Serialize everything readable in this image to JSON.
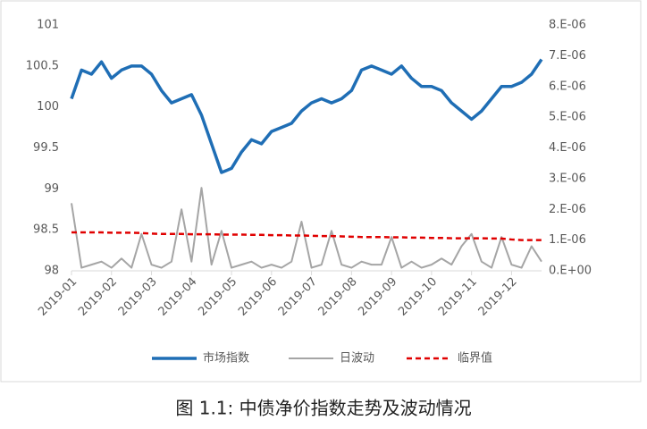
{
  "chart_data": {
    "type": "line",
    "caption": "图 1.1:  中债净价指数走势及波动情况",
    "categories": [
      "2019-01",
      null,
      null,
      null,
      "2019-02",
      null,
      null,
      null,
      "2019-03",
      null,
      null,
      null,
      "2019-04",
      null,
      null,
      null,
      "2019-05",
      null,
      null,
      null,
      "2019-06",
      null,
      null,
      null,
      "2019-07",
      null,
      null,
      null,
      "2019-08",
      null,
      null,
      null,
      "2019-09",
      null,
      null,
      null,
      "2019-10",
      null,
      null,
      null,
      "2019-11",
      null,
      null,
      null,
      "2019-12",
      null,
      null,
      null
    ],
    "series": [
      {
        "name": "市场指数",
        "color": "#1f6eb5",
        "axis": "y",
        "values": [
          100.1,
          100.45,
          100.4,
          100.55,
          100.35,
          100.45,
          100.5,
          100.5,
          100.4,
          100.2,
          100.05,
          100.1,
          100.15,
          99.9,
          99.55,
          99.2,
          99.25,
          99.45,
          99.6,
          99.55,
          99.7,
          99.75,
          99.8,
          99.95,
          100.05,
          100.1,
          100.05,
          100.1,
          100.2,
          100.45,
          100.5,
          100.45,
          100.4,
          100.5,
          100.35,
          100.25,
          100.25,
          100.2,
          100.05,
          99.95,
          99.85,
          99.95,
          100.1,
          100.25,
          100.25,
          100.3,
          100.4,
          100.58
        ]
      },
      {
        "name": "日波动",
        "color": "#a5a5a5",
        "axis": "y2",
        "values": [
          2.2e-06,
          1e-07,
          2e-07,
          3e-07,
          1e-07,
          4e-07,
          1e-07,
          1.2e-06,
          2e-07,
          1e-07,
          3e-07,
          2e-06,
          3e-07,
          2.7e-06,
          2e-07,
          1.3e-06,
          1e-07,
          2e-07,
          3e-07,
          1e-07,
          2e-07,
          1e-07,
          3e-07,
          1.6e-06,
          1e-07,
          2e-07,
          1.3e-06,
          2e-07,
          1e-07,
          3e-07,
          2e-07,
          2e-07,
          1.1e-06,
          1e-07,
          3e-07,
          1e-07,
          2e-07,
          4e-07,
          2e-07,
          8e-07,
          1.2e-06,
          3e-07,
          1e-07,
          1.1e-06,
          2e-07,
          1e-07,
          8e-07,
          3e-07
        ]
      },
      {
        "name": "临界值",
        "color": "#e00000",
        "axis": "y2",
        "dashed": true,
        "values": [
          1.25e-06,
          1.25e-06,
          1.25e-06,
          1.25e-06,
          1.24e-06,
          1.24e-06,
          1.24e-06,
          1.23e-06,
          1.21e-06,
          1.2e-06,
          1.2e-06,
          1.2e-06,
          1.19e-06,
          1.19e-06,
          1.19e-06,
          1.18e-06,
          1.18e-06,
          1.18e-06,
          1.17e-06,
          1.17e-06,
          1.16e-06,
          1.16e-06,
          1.15e-06,
          1.15e-06,
          1.14e-06,
          1.13e-06,
          1.13e-06,
          1.12e-06,
          1.11e-06,
          1.1e-06,
          1.1e-06,
          1.1e-06,
          1.09e-06,
          1.09e-06,
          1.08e-06,
          1.08e-06,
          1.07e-06,
          1.07e-06,
          1.06e-06,
          1.06e-06,
          1.06e-06,
          1.06e-06,
          1.05e-06,
          1.05e-06,
          1.02e-06,
          1e-06,
          1e-06,
          1e-06
        ]
      }
    ],
    "ylim": [
      98,
      101
    ],
    "yticks": [
      98,
      98.5,
      99,
      99.5,
      100,
      100.5,
      101
    ],
    "y2lim": [
      0,
      8e-06
    ],
    "y2ticks": [
      {
        "value": 0,
        "label": "0.E+00"
      },
      {
        "value": 1e-06,
        "label": "1.E-06"
      },
      {
        "value": 2e-06,
        "label": "2.E-06"
      },
      {
        "value": 3e-06,
        "label": "3.E-06"
      },
      {
        "value": 4e-06,
        "label": "4.E-06"
      },
      {
        "value": 5e-06,
        "label": "5.E-06"
      },
      {
        "value": 6e-06,
        "label": "6.E-06"
      },
      {
        "value": 7e-06,
        "label": "7.E-06"
      },
      {
        "value": 8e-06,
        "label": "8.E-06"
      }
    ],
    "legend": "bottom"
  }
}
